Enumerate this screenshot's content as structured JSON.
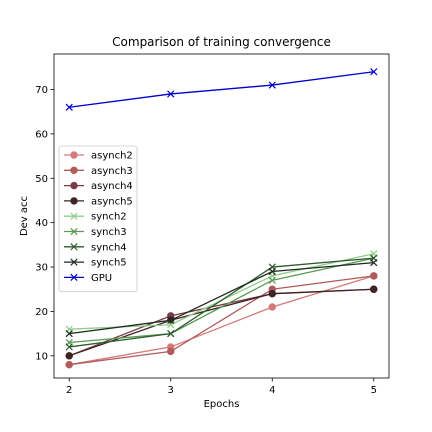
{
  "chart_data": {
    "type": "line",
    "title": "Comparison of training convergence",
    "xlabel": "Epochs",
    "ylabel": "Dev acc",
    "x": [
      2,
      3,
      4,
      5
    ],
    "xlim": [
      1.85,
      5.15
    ],
    "ylim": [
      5,
      78
    ],
    "xticks": [
      "2",
      "3",
      "4",
      "5"
    ],
    "yticks": [
      "10",
      "20",
      "30",
      "40",
      "50",
      "60",
      "70"
    ],
    "grid": false,
    "legend_position": "center-left",
    "series": [
      {
        "name": "asynch2",
        "color": "#d47a7a",
        "marker": "o",
        "values": [
          8,
          12,
          21,
          28
        ]
      },
      {
        "name": "asynch3",
        "color": "#b05a5a",
        "marker": "o",
        "values": [
          8,
          11,
          25,
          28
        ]
      },
      {
        "name": "asynch4",
        "color": "#7a3b45",
        "marker": "o",
        "values": [
          10,
          19,
          24,
          25
        ]
      },
      {
        "name": "asynch5",
        "color": "#3e2424",
        "marker": "o",
        "values": [
          10,
          18,
          24,
          25
        ]
      },
      {
        "name": "synch2",
        "color": "#8fce8a",
        "marker": "x",
        "values": [
          16,
          17,
          28,
          33
        ]
      },
      {
        "name": "synch3",
        "color": "#5a9a55",
        "marker": "x",
        "values": [
          13,
          15,
          27,
          32
        ]
      },
      {
        "name": "synch4",
        "color": "#2f5a30",
        "marker": "x",
        "values": [
          12,
          15,
          30,
          32
        ]
      },
      {
        "name": "synch5",
        "color": "#1f2a1f",
        "marker": "x",
        "values": [
          15,
          18,
          29,
          31
        ]
      },
      {
        "name": "GPU",
        "color": "#0000cc",
        "marker": "x",
        "values": [
          66,
          69,
          71,
          74
        ]
      }
    ]
  }
}
